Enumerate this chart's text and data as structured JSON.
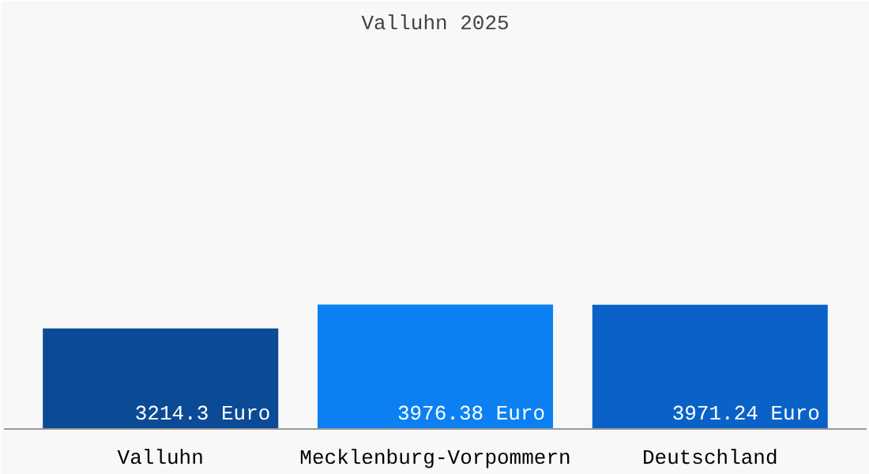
{
  "chart_data": {
    "type": "bar",
    "title": "Valluhn 2025",
    "categories": [
      "Valluhn",
      "Mecklenburg-Vorpommern",
      "Deutschland"
    ],
    "values": [
      3214.3,
      3976.38,
      3971.24
    ],
    "colors": [
      "#0b4a94",
      "#0c80f2",
      "#0a62c8"
    ],
    "value_labels": [
      "3214.3 Euro",
      "3976.38 Euro",
      "3971.24 Euro"
    ],
    "grid": false
  }
}
